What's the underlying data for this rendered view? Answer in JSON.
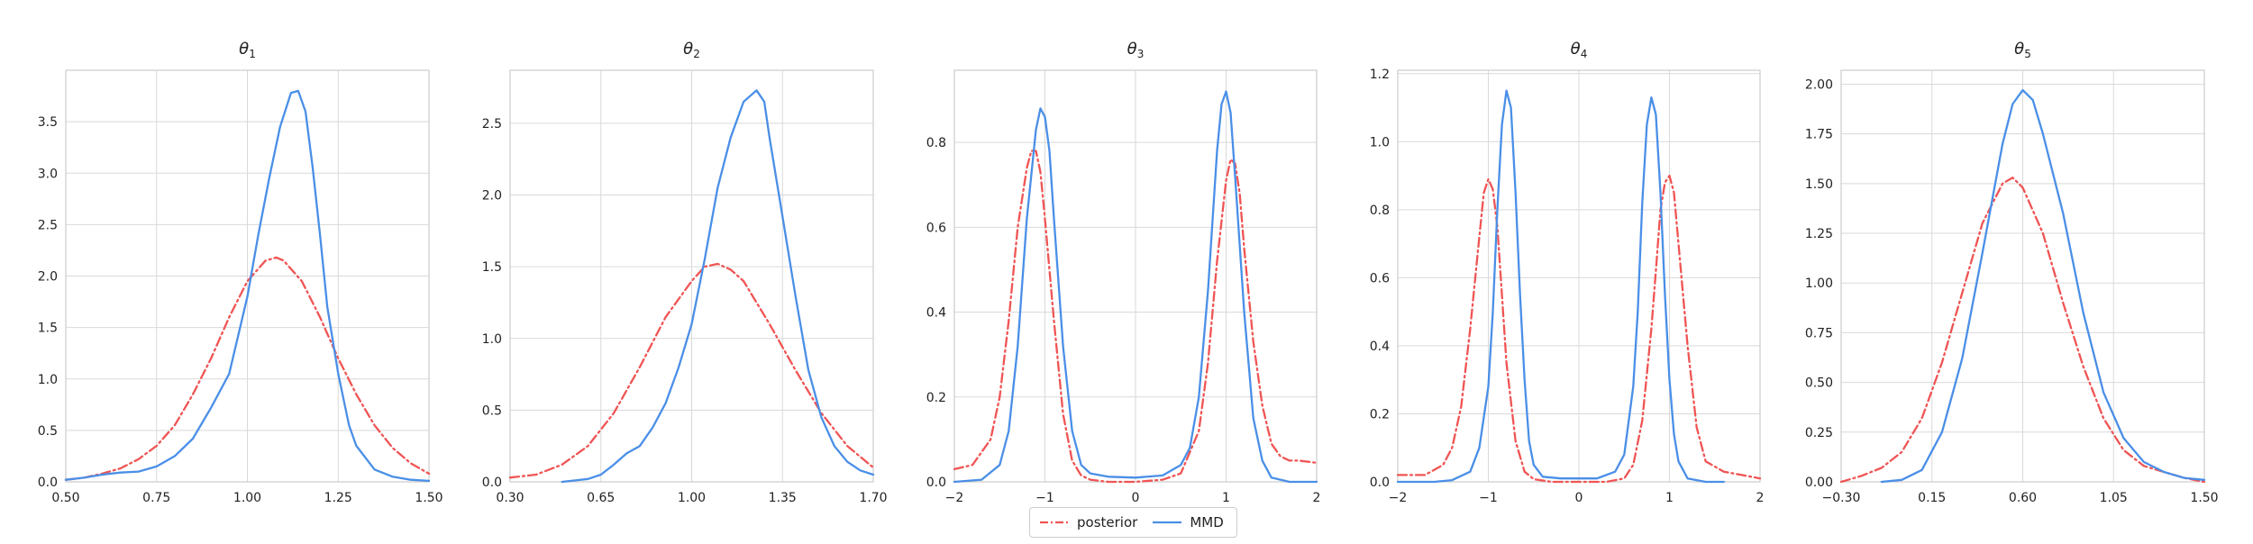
{
  "colors": {
    "posterior": "#f05454",
    "mmd": "#4a8fe7",
    "grid": "#d9d9d9",
    "axis": "#cccccc"
  },
  "legend": {
    "posterior": "posterior",
    "mmd": "MMD"
  },
  "chart_data": [
    {
      "type": "line",
      "title": "θ",
      "title_sub": "1",
      "xlim": [
        0.5,
        1.5
      ],
      "ylim": [
        0,
        4.0
      ],
      "xticks": [
        0.5,
        0.75,
        1.0,
        1.25,
        1.5
      ],
      "xtick_labels": [
        "0.50",
        "0.75",
        "1.00",
        "1.25",
        "1.50"
      ],
      "yticks": [
        0,
        0.5,
        1.0,
        1.5,
        2.0,
        2.5,
        3.0,
        3.5
      ],
      "ytick_labels": [
        "0.0",
        "0.5",
        "1.0",
        "1.5",
        "2.0",
        "2.5",
        "3.0",
        "3.5"
      ],
      "series": [
        {
          "name": "posterior",
          "style": "dashdot",
          "x": [
            0.5,
            0.55,
            0.6,
            0.65,
            0.7,
            0.75,
            0.8,
            0.85,
            0.9,
            0.95,
            1.0,
            1.05,
            1.08,
            1.1,
            1.15,
            1.2,
            1.25,
            1.3,
            1.35,
            1.4,
            1.45,
            1.5
          ],
          "y": [
            0.02,
            0.04,
            0.08,
            0.13,
            0.22,
            0.35,
            0.55,
            0.85,
            1.2,
            1.6,
            1.95,
            2.15,
            2.18,
            2.15,
            1.95,
            1.6,
            1.2,
            0.85,
            0.55,
            0.33,
            0.18,
            0.08
          ]
        },
        {
          "name": "MMD",
          "style": "solid",
          "x": [
            0.5,
            0.55,
            0.6,
            0.65,
            0.7,
            0.75,
            0.8,
            0.85,
            0.9,
            0.95,
            1.0,
            1.03,
            1.06,
            1.09,
            1.12,
            1.14,
            1.16,
            1.18,
            1.2,
            1.22,
            1.25,
            1.28,
            1.3,
            1.35,
            1.4,
            1.45,
            1.5
          ],
          "y": [
            0.02,
            0.04,
            0.07,
            0.09,
            0.1,
            0.15,
            0.25,
            0.42,
            0.72,
            1.05,
            1.8,
            2.4,
            2.95,
            3.45,
            3.78,
            3.8,
            3.6,
            3.05,
            2.4,
            1.7,
            1.05,
            0.55,
            0.35,
            0.12,
            0.05,
            0.02,
            0.01
          ]
        }
      ]
    },
    {
      "type": "line",
      "title": "θ",
      "title_sub": "2",
      "xlim": [
        0.3,
        1.7
      ],
      "ylim": [
        0,
        2.87
      ],
      "xticks": [
        0.3,
        0.65,
        1.0,
        1.35,
        1.7
      ],
      "xtick_labels": [
        "0.30",
        "0.65",
        "1.00",
        "1.35",
        "1.70"
      ],
      "yticks": [
        0,
        0.5,
        1.0,
        1.5,
        2.0,
        2.5
      ],
      "ytick_labels": [
        "0.0",
        "0.5",
        "1.0",
        "1.5",
        "2.0",
        "2.5"
      ],
      "series": [
        {
          "name": "posterior",
          "style": "dashdot",
          "x": [
            0.3,
            0.4,
            0.5,
            0.6,
            0.7,
            0.8,
            0.9,
            1.0,
            1.05,
            1.1,
            1.15,
            1.2,
            1.3,
            1.4,
            1.5,
            1.6,
            1.7
          ],
          "y": [
            0.03,
            0.05,
            0.12,
            0.25,
            0.48,
            0.8,
            1.15,
            1.4,
            1.5,
            1.52,
            1.48,
            1.4,
            1.1,
            0.78,
            0.48,
            0.25,
            0.1
          ]
        },
        {
          "name": "MMD",
          "style": "solid",
          "x": [
            0.5,
            0.6,
            0.65,
            0.7,
            0.75,
            0.8,
            0.85,
            0.9,
            0.95,
            1.0,
            1.05,
            1.1,
            1.15,
            1.2,
            1.25,
            1.28,
            1.3,
            1.35,
            1.4,
            1.45,
            1.5,
            1.55,
            1.6,
            1.65,
            1.7
          ],
          "y": [
            0.0,
            0.02,
            0.05,
            0.12,
            0.2,
            0.25,
            0.38,
            0.55,
            0.8,
            1.1,
            1.55,
            2.05,
            2.4,
            2.65,
            2.73,
            2.65,
            2.4,
            1.85,
            1.3,
            0.78,
            0.45,
            0.25,
            0.14,
            0.08,
            0.05
          ]
        }
      ]
    },
    {
      "type": "line",
      "title": "θ",
      "title_sub": "3",
      "xlim": [
        -2,
        2
      ],
      "ylim": [
        0,
        0.97
      ],
      "xticks": [
        -2,
        -1,
        0,
        1,
        2
      ],
      "xtick_labels": [
        "−2",
        "−1",
        "0",
        "1",
        "2"
      ],
      "yticks": [
        0,
        0.2,
        0.4,
        0.6,
        0.8
      ],
      "ytick_labels": [
        "0.0",
        "0.2",
        "0.4",
        "0.6",
        "0.8"
      ],
      "series": [
        {
          "name": "posterior",
          "style": "dashdot",
          "x": [
            -2.0,
            -1.8,
            -1.6,
            -1.5,
            -1.4,
            -1.3,
            -1.2,
            -1.15,
            -1.1,
            -1.05,
            -1.0,
            -0.9,
            -0.8,
            -0.7,
            -0.6,
            -0.5,
            -0.3,
            0.0,
            0.3,
            0.5,
            0.7,
            0.8,
            0.9,
            1.0,
            1.05,
            1.1,
            1.15,
            1.2,
            1.3,
            1.4,
            1.5,
            1.6,
            1.7,
            1.8,
            2.0
          ],
          "y": [
            0.03,
            0.04,
            0.1,
            0.2,
            0.38,
            0.6,
            0.74,
            0.78,
            0.78,
            0.73,
            0.62,
            0.38,
            0.16,
            0.05,
            0.015,
            0.005,
            0.0,
            0.0,
            0.005,
            0.02,
            0.12,
            0.28,
            0.52,
            0.71,
            0.76,
            0.75,
            0.68,
            0.55,
            0.33,
            0.18,
            0.09,
            0.06,
            0.05,
            0.05,
            0.045
          ]
        },
        {
          "name": "MMD",
          "style": "solid",
          "x": [
            -2.0,
            -1.7,
            -1.5,
            -1.4,
            -1.3,
            -1.2,
            -1.1,
            -1.05,
            -1.0,
            -0.95,
            -0.9,
            -0.8,
            -0.7,
            -0.6,
            -0.5,
            -0.3,
            0.0,
            0.3,
            0.5,
            0.6,
            0.7,
            0.8,
            0.9,
            0.95,
            1.0,
            1.05,
            1.1,
            1.2,
            1.3,
            1.4,
            1.5,
            1.7,
            2.0
          ],
          "y": [
            0.0,
            0.005,
            0.04,
            0.12,
            0.32,
            0.62,
            0.83,
            0.88,
            0.86,
            0.78,
            0.62,
            0.32,
            0.12,
            0.04,
            0.02,
            0.012,
            0.01,
            0.015,
            0.04,
            0.08,
            0.2,
            0.45,
            0.78,
            0.89,
            0.92,
            0.87,
            0.72,
            0.4,
            0.15,
            0.05,
            0.01,
            0.0,
            0.0
          ]
        }
      ]
    },
    {
      "type": "line",
      "title": "θ",
      "title_sub": "4",
      "xlim": [
        -2,
        2
      ],
      "ylim": [
        0,
        1.21
      ],
      "xticks": [
        -2,
        -1,
        0,
        1,
        2
      ],
      "xtick_labels": [
        "−2",
        "−1",
        "0",
        "1",
        "2"
      ],
      "yticks": [
        0,
        0.2,
        0.4,
        0.6,
        0.8,
        1.0,
        1.2
      ],
      "ytick_labels": [
        "0.0",
        "0.2",
        "0.4",
        "0.6",
        "0.8",
        "1.0",
        "1.2"
      ],
      "series": [
        {
          "name": "posterior",
          "style": "dashdot",
          "x": [
            -2.0,
            -1.7,
            -1.5,
            -1.4,
            -1.3,
            -1.2,
            -1.1,
            -1.05,
            -1.0,
            -0.95,
            -0.9,
            -0.85,
            -0.8,
            -0.7,
            -0.6,
            -0.5,
            -0.3,
            0.0,
            0.3,
            0.5,
            0.6,
            0.7,
            0.8,
            0.85,
            0.9,
            0.95,
            1.0,
            1.05,
            1.1,
            1.2,
            1.3,
            1.4,
            1.6,
            1.8,
            2.0
          ],
          "y": [
            0.02,
            0.02,
            0.05,
            0.1,
            0.22,
            0.45,
            0.72,
            0.85,
            0.89,
            0.86,
            0.75,
            0.55,
            0.35,
            0.12,
            0.03,
            0.008,
            0.0,
            0.0,
            0.0,
            0.01,
            0.05,
            0.18,
            0.45,
            0.62,
            0.8,
            0.88,
            0.9,
            0.85,
            0.7,
            0.4,
            0.16,
            0.06,
            0.03,
            0.02,
            0.01
          ]
        },
        {
          "name": "MMD",
          "style": "solid",
          "x": [
            -2.0,
            -1.6,
            -1.4,
            -1.2,
            -1.1,
            -1.0,
            -0.95,
            -0.9,
            -0.85,
            -0.8,
            -0.75,
            -0.7,
            -0.65,
            -0.6,
            -0.55,
            -0.5,
            -0.4,
            -0.2,
            0.0,
            0.2,
            0.4,
            0.5,
            0.6,
            0.65,
            0.7,
            0.75,
            0.8,
            0.85,
            0.9,
            0.95,
            1.0,
            1.05,
            1.1,
            1.2,
            1.4,
            1.6
          ],
          "y": [
            0.0,
            0.0,
            0.005,
            0.03,
            0.1,
            0.28,
            0.5,
            0.8,
            1.05,
            1.15,
            1.1,
            0.85,
            0.55,
            0.3,
            0.12,
            0.05,
            0.015,
            0.01,
            0.01,
            0.01,
            0.03,
            0.08,
            0.28,
            0.5,
            0.82,
            1.05,
            1.13,
            1.08,
            0.85,
            0.55,
            0.3,
            0.14,
            0.06,
            0.01,
            0.0,
            0.0
          ]
        }
      ]
    },
    {
      "type": "line",
      "title": "θ",
      "title_sub": "5",
      "xlim": [
        -0.3,
        1.5
      ],
      "ylim": [
        0,
        2.07
      ],
      "xticks": [
        -0.3,
        0.15,
        0.6,
        1.05,
        1.5
      ],
      "xtick_labels": [
        "−0.30",
        "0.15",
        "0.60",
        "1.05",
        "1.50"
      ],
      "yticks": [
        0,
        0.25,
        0.5,
        0.75,
        1.0,
        1.25,
        1.5,
        1.75,
        2.0
      ],
      "ytick_labels": [
        "0.00",
        "0.25",
        "0.50",
        "0.75",
        "1.00",
        "1.25",
        "1.50",
        "1.75",
        "2.00"
      ],
      "series": [
        {
          "name": "posterior",
          "style": "dashdot",
          "x": [
            -0.3,
            -0.2,
            -0.1,
            0.0,
            0.1,
            0.2,
            0.3,
            0.4,
            0.5,
            0.55,
            0.6,
            0.7,
            0.8,
            0.9,
            1.0,
            1.1,
            1.2,
            1.3,
            1.4,
            1.5
          ],
          "y": [
            0.0,
            0.03,
            0.07,
            0.15,
            0.32,
            0.6,
            0.95,
            1.3,
            1.5,
            1.53,
            1.48,
            1.25,
            0.9,
            0.58,
            0.32,
            0.16,
            0.08,
            0.05,
            0.02,
            0.0
          ]
        },
        {
          "name": "MMD",
          "style": "solid",
          "x": [
            -0.1,
            0.0,
            0.1,
            0.2,
            0.3,
            0.4,
            0.5,
            0.55,
            0.6,
            0.65,
            0.7,
            0.8,
            0.9,
            1.0,
            1.1,
            1.2,
            1.3,
            1.4,
            1.5
          ],
          "y": [
            0.0,
            0.01,
            0.06,
            0.25,
            0.62,
            1.15,
            1.7,
            1.9,
            1.97,
            1.92,
            1.75,
            1.35,
            0.85,
            0.45,
            0.22,
            0.1,
            0.05,
            0.02,
            0.01
          ]
        }
      ]
    }
  ]
}
